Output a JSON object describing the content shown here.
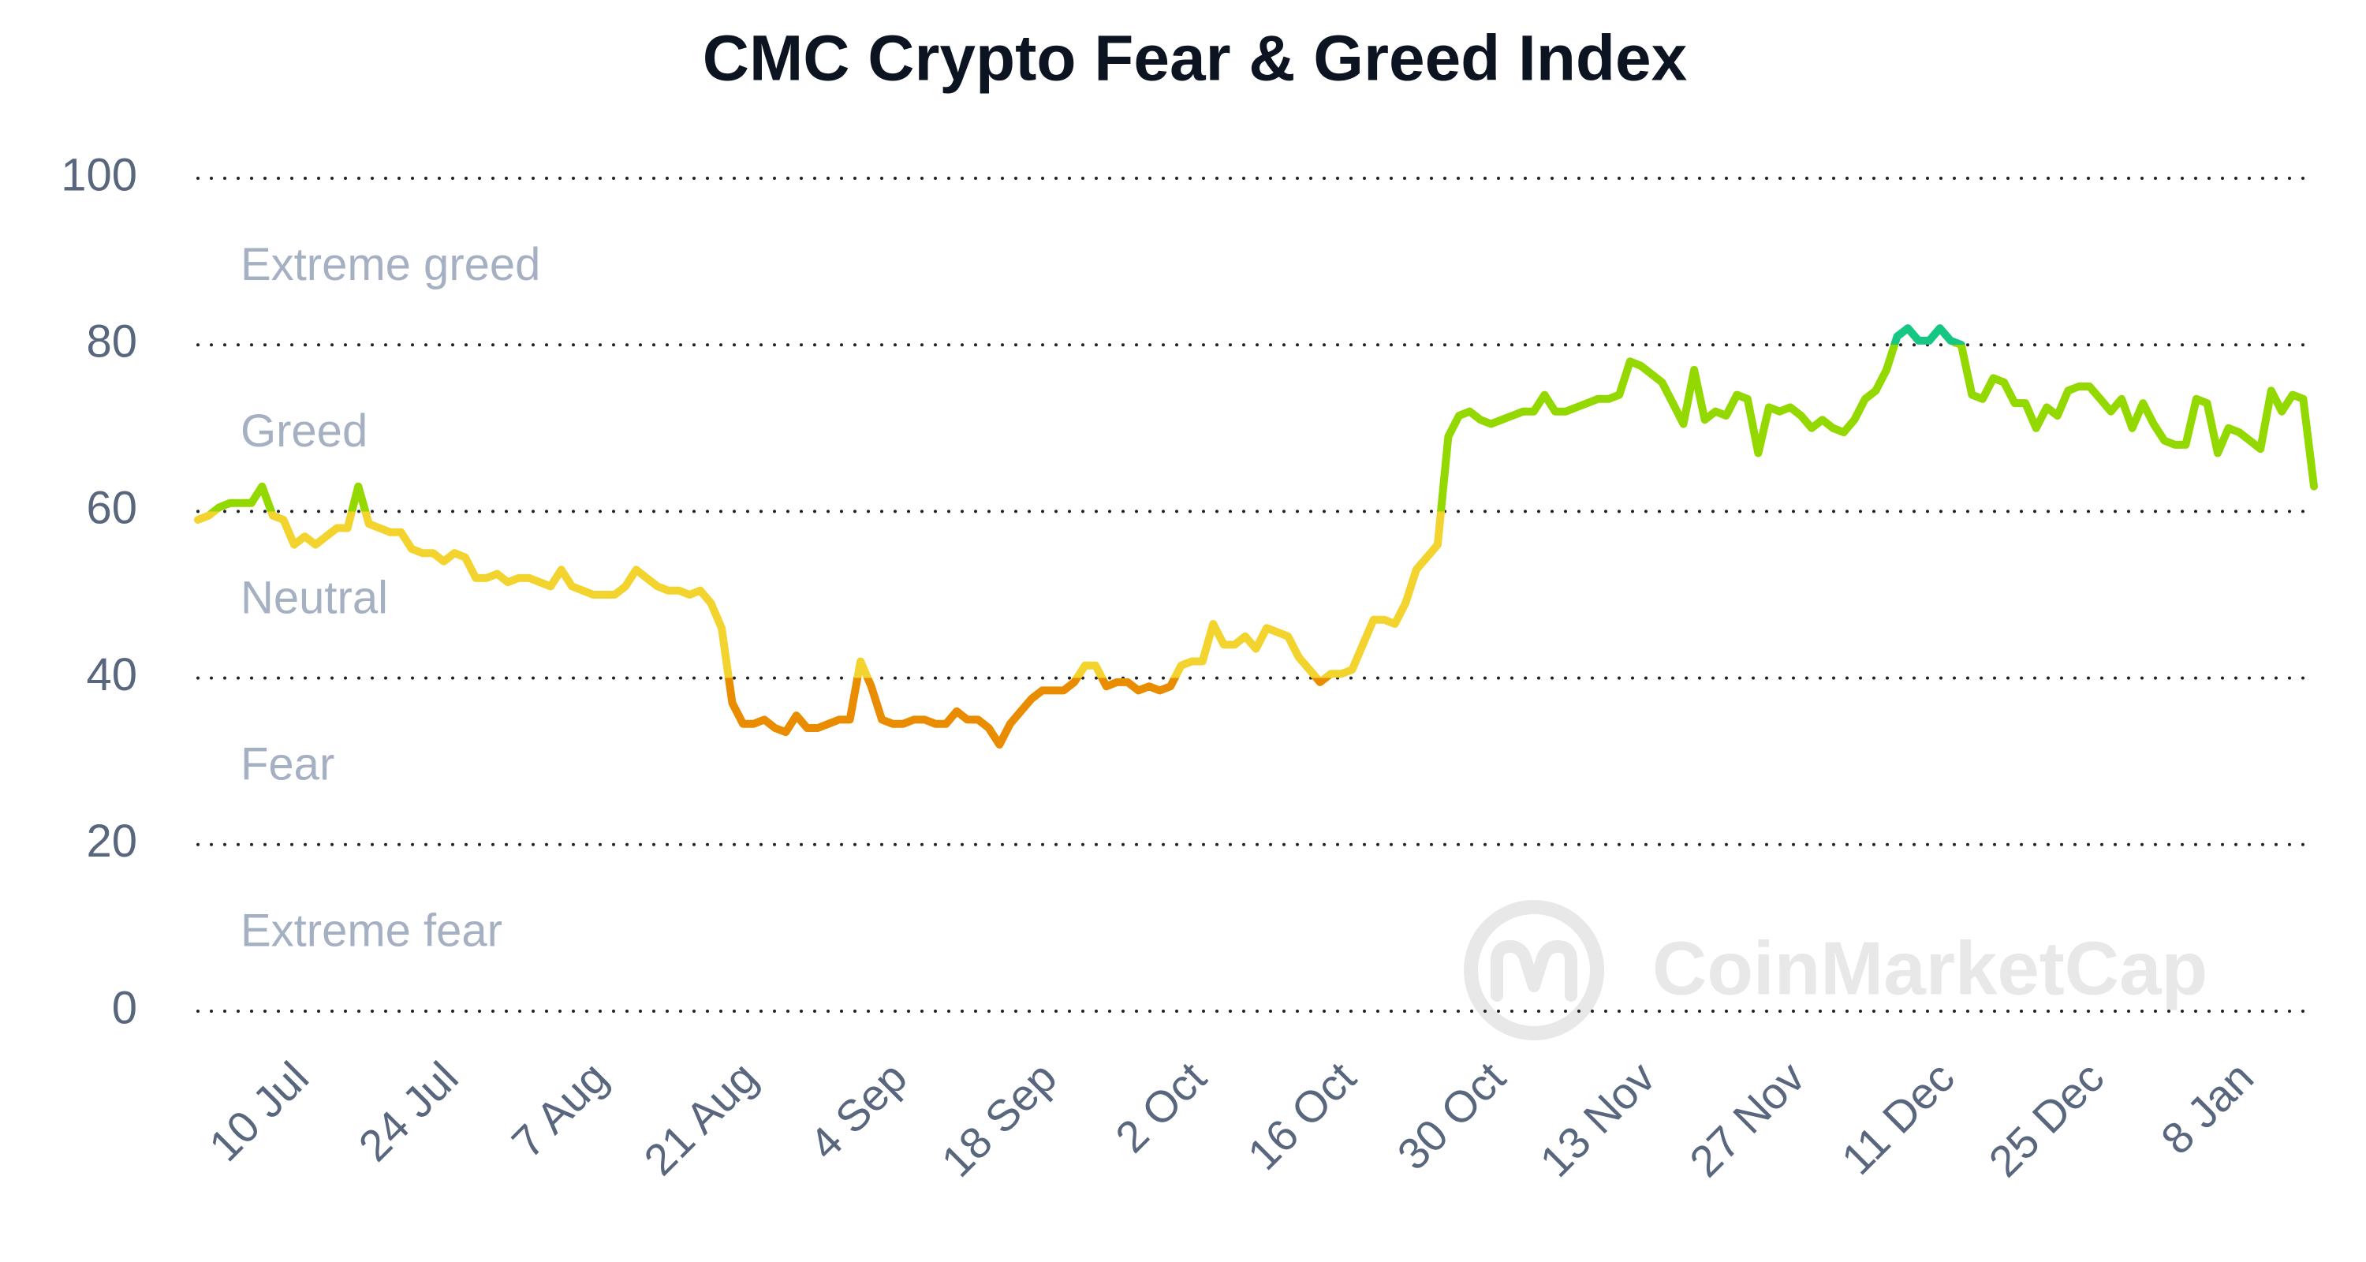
{
  "chart_data": {
    "type": "line",
    "title": "CMC Crypto Fear & Greed Index",
    "watermark": "CoinMarketCap",
    "categories": [
      null,
      null,
      null,
      null,
      null,
      null,
      null,
      null,
      null,
      null,
      "10 Jul",
      null,
      null,
      null,
      null,
      null,
      null,
      null,
      null,
      null,
      null,
      null,
      null,
      null,
      "24 Jul",
      null,
      null,
      null,
      null,
      null,
      null,
      null,
      null,
      null,
      null,
      null,
      null,
      null,
      "7 Aug",
      null,
      null,
      null,
      null,
      null,
      null,
      null,
      null,
      null,
      null,
      null,
      null,
      null,
      "21 Aug",
      null,
      null,
      null,
      null,
      null,
      null,
      null,
      null,
      null,
      null,
      null,
      null,
      null,
      "4 Sep",
      null,
      null,
      null,
      null,
      null,
      null,
      null,
      null,
      null,
      null,
      null,
      null,
      null,
      "18 Sep",
      null,
      null,
      null,
      null,
      null,
      null,
      null,
      null,
      null,
      null,
      null,
      null,
      null,
      "2 Oct",
      null,
      null,
      null,
      null,
      null,
      null,
      null,
      null,
      null,
      null,
      null,
      null,
      null,
      "16 Oct",
      null,
      null,
      null,
      null,
      null,
      null,
      null,
      null,
      null,
      null,
      null,
      null,
      null,
      "30 Oct",
      null,
      null,
      null,
      null,
      null,
      null,
      null,
      null,
      null,
      null,
      null,
      null,
      null,
      "13 Nov",
      null,
      null,
      null,
      null,
      null,
      null,
      null,
      null,
      null,
      null,
      null,
      null,
      null,
      "27 Nov",
      null,
      null,
      null,
      null,
      null,
      null,
      null,
      null,
      null,
      null,
      null,
      null,
      null,
      "11 Dec",
      null,
      null,
      null,
      null,
      null,
      null,
      null,
      null,
      null,
      null,
      null,
      null,
      null,
      "25 Dec",
      null,
      null,
      null,
      null,
      null,
      null,
      null,
      null,
      null,
      null,
      null,
      null,
      null,
      "8 Jan",
      null,
      null,
      null,
      null,
      null,
      null
    ],
    "values": [
      59,
      59.5,
      60.5,
      61,
      61,
      61,
      63,
      59.5,
      59,
      56,
      57,
      56,
      57,
      58,
      58,
      63,
      58.5,
      58,
      57.5,
      57.5,
      55.5,
      55,
      55,
      54,
      55,
      54.5,
      52,
      52,
      52.5,
      51.5,
      52,
      52,
      51.5,
      51,
      53,
      51,
      50.5,
      50,
      50,
      50,
      51,
      53,
      52,
      51,
      50.5,
      50.5,
      50,
      50.5,
      49,
      46,
      37,
      34.5,
      34.5,
      35,
      34,
      33.5,
      35.5,
      34,
      34,
      34.5,
      35,
      35,
      42,
      39,
      35,
      34.5,
      34.5,
      35,
      35,
      34.5,
      34.5,
      36,
      35,
      35,
      34,
      32,
      34.5,
      36,
      37.5,
      38.5,
      38.5,
      38.5,
      39.5,
      41.5,
      41.5,
      39,
      39.5,
      39.5,
      38.5,
      39,
      38.5,
      39,
      41.5,
      42,
      42,
      46.5,
      44,
      44,
      45,
      43.5,
      46,
      45.5,
      45,
      42.5,
      41,
      39.5,
      40.5,
      40.5,
      41,
      44,
      47,
      47,
      46.5,
      49,
      53,
      54.5,
      56,
      69,
      71.5,
      72,
      71,
      70.5,
      71,
      71.5,
      72,
      72,
      74,
      72,
      72,
      72.5,
      73,
      73.5,
      73.5,
      74,
      78,
      77.5,
      76.5,
      75.5,
      73,
      70.5,
      77,
      71,
      72,
      71.5,
      74,
      73.5,
      67,
      72.5,
      72,
      72.5,
      71.5,
      70,
      71,
      70,
      69.5,
      71,
      73.5,
      74.5,
      77,
      81,
      82,
      80.5,
      80.5,
      82,
      80.5,
      80,
      74,
      73.5,
      76,
      75.5,
      73,
      73,
      70,
      72.5,
      71.5,
      74.5,
      75,
      75,
      73.5,
      72,
      73.5,
      70,
      73,
      70.5,
      68.5,
      68,
      68,
      73.5,
      73,
      67,
      70,
      69.5,
      68.5,
      67.5,
      74.5,
      72,
      74,
      73.5,
      63
    ],
    "ylim": [
      0,
      100
    ],
    "yticks": [
      0,
      20,
      40,
      60,
      80,
      100
    ],
    "grid": true,
    "bands": [
      {
        "label": "Extreme greed",
        "min": 80,
        "max": 100,
        "color": "#16c784"
      },
      {
        "label": "Greed",
        "min": 60,
        "max": 80,
        "color": "#93d900"
      },
      {
        "label": "Neutral",
        "min": 40,
        "max": 60,
        "color": "#f3d42f"
      },
      {
        "label": "Fear",
        "min": 20,
        "max": 40,
        "color": "#ea8c00"
      },
      {
        "label": "Extreme fear",
        "min": 0,
        "max": 20,
        "color": "#ea3943"
      }
    ]
  }
}
